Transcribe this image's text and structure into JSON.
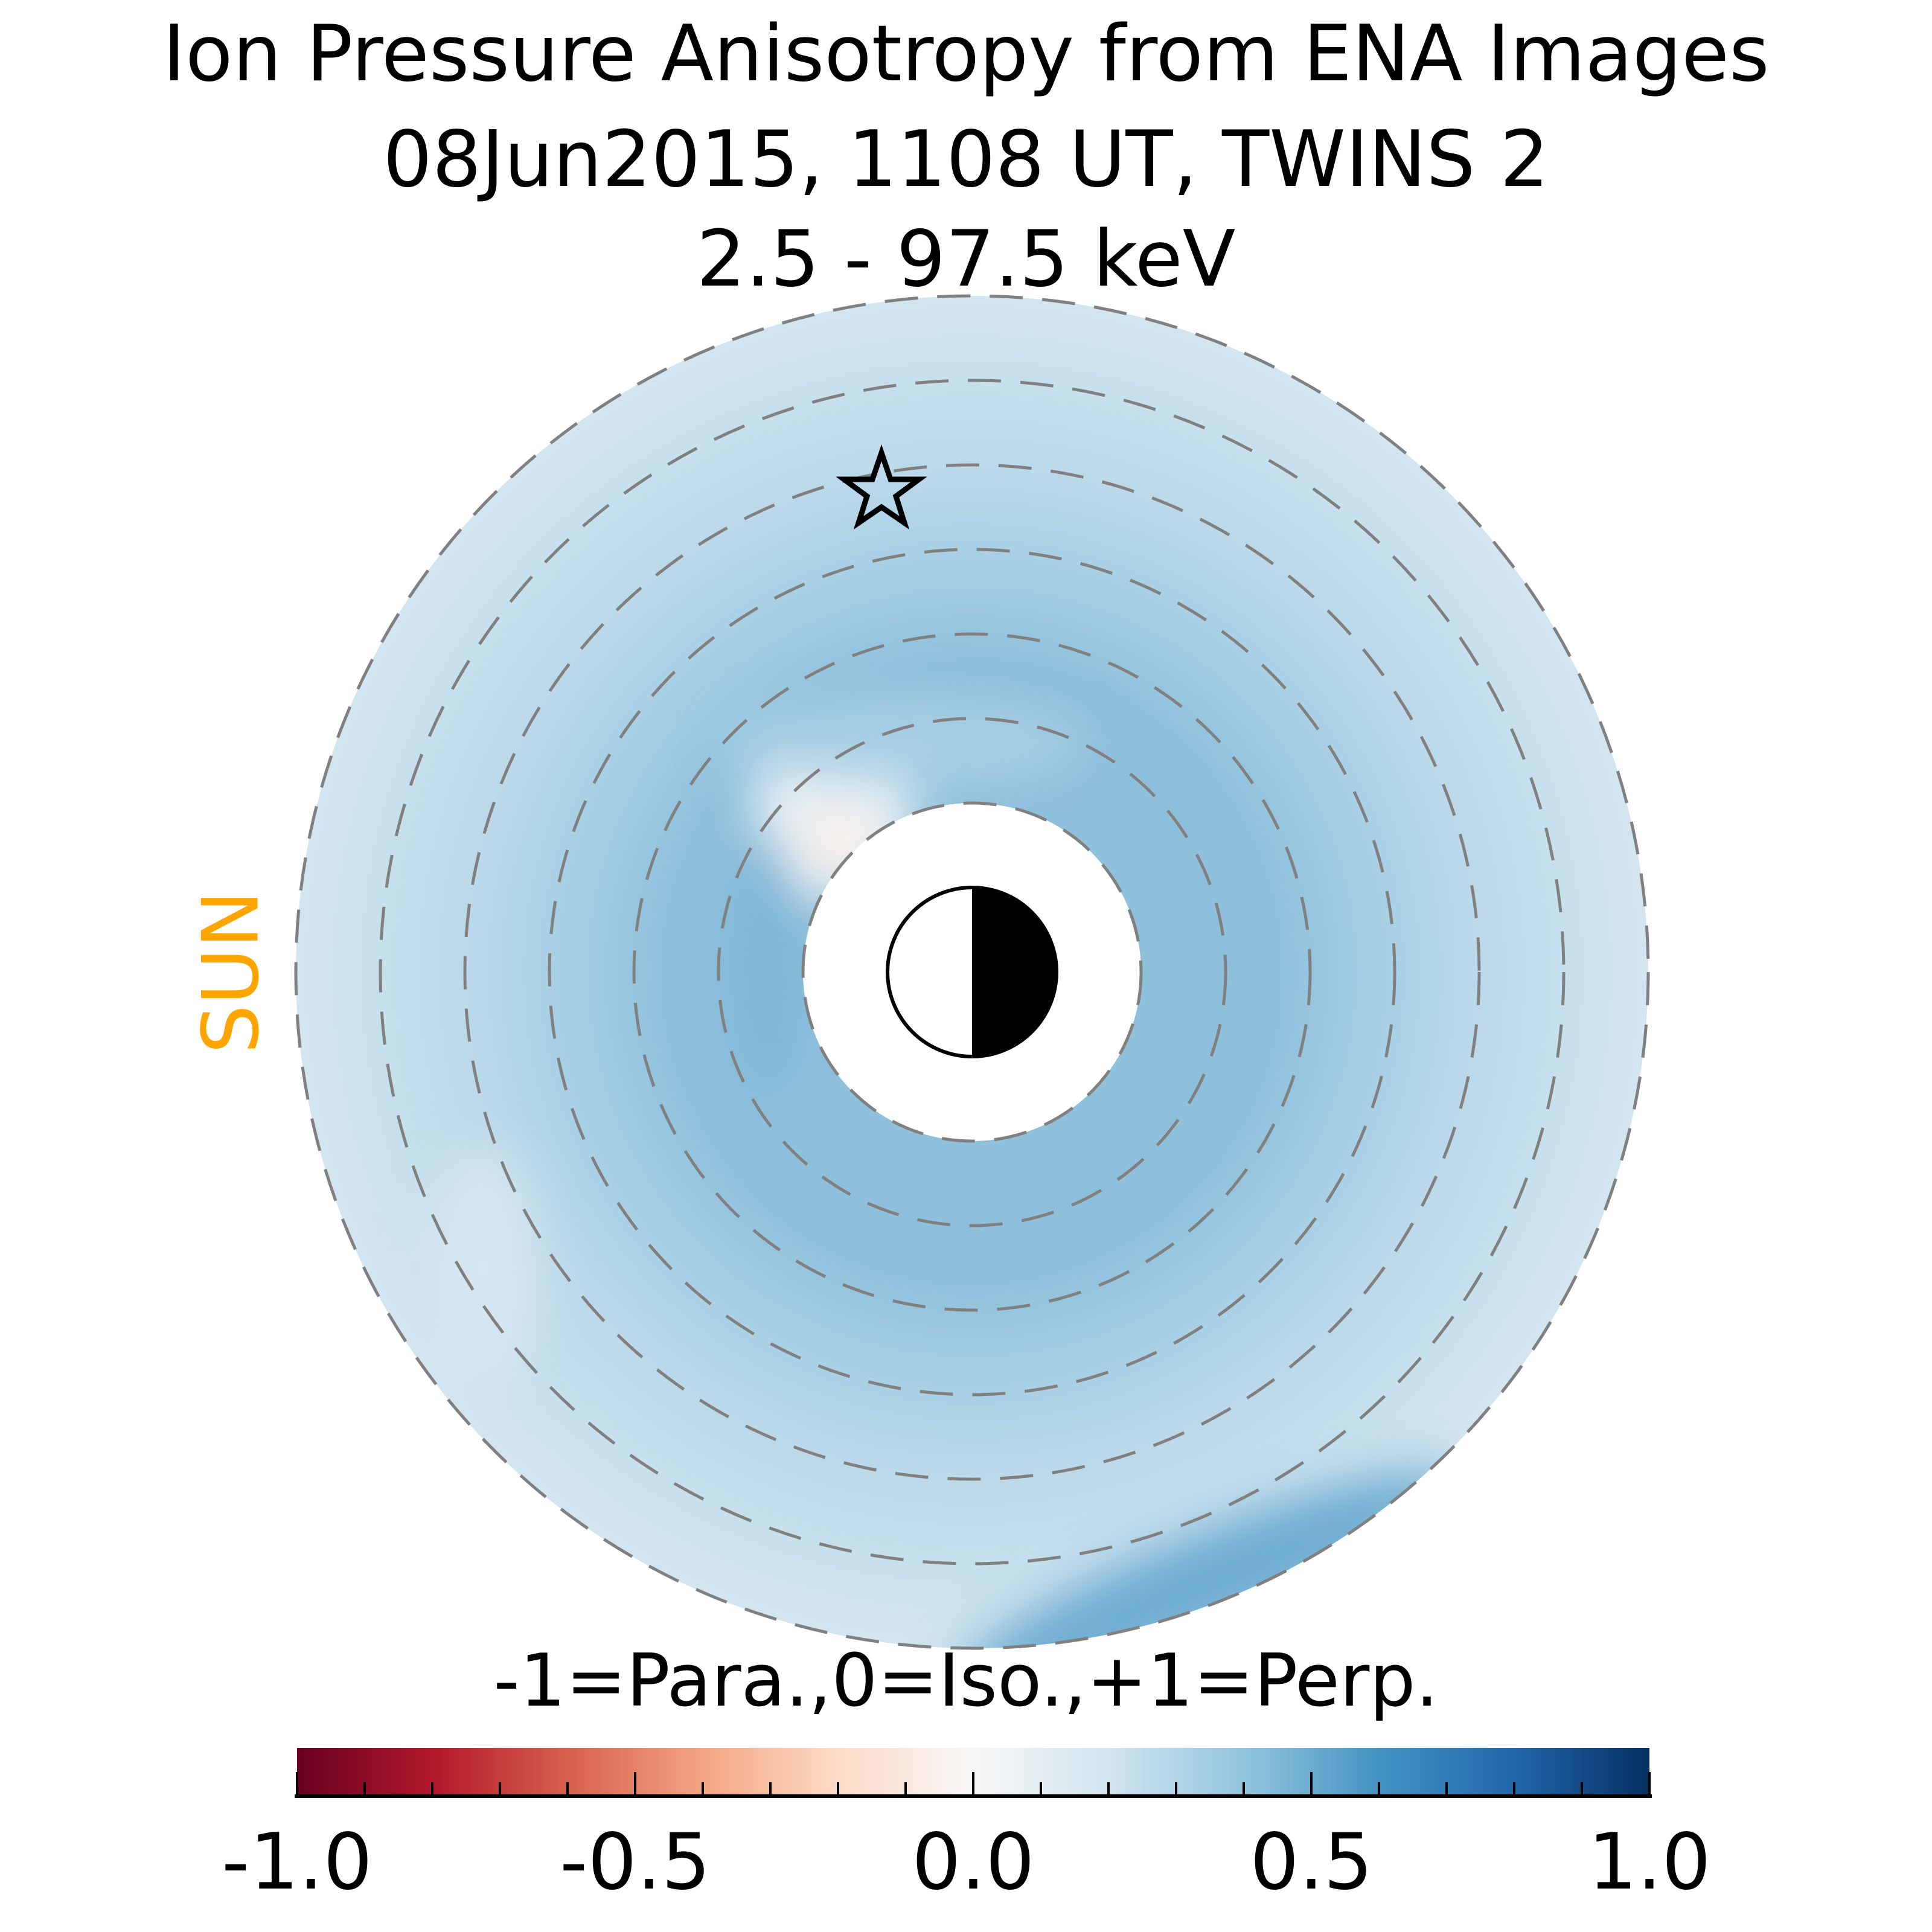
{
  "chart_data": {
    "type": "heatmap",
    "projection": "polar",
    "title": [
      "Ion Pressure Anisotropy from  ENA Images",
      "08Jun2015, 1108 UT,  TWINS 2",
      "2.5 - 97.5 keV"
    ],
    "sun_label": "SUN",
    "colorbar": {
      "label": "-1=Para.,0=Iso.,+1=Perp.",
      "range": [
        -1.0,
        1.0
      ],
      "ticks": [
        -1.0,
        -0.5,
        0.0,
        0.5,
        1.0
      ],
      "tick_labels": [
        "-1.0",
        "-0.5",
        "0.0",
        "0.5",
        "1.0"
      ],
      "minor_step": 0.1,
      "colormap": "RdBu"
    },
    "dashed_ring_count": 7,
    "typical_value": 0.35,
    "value_range_observed": [
      -0.05,
      0.55
    ]
  }
}
